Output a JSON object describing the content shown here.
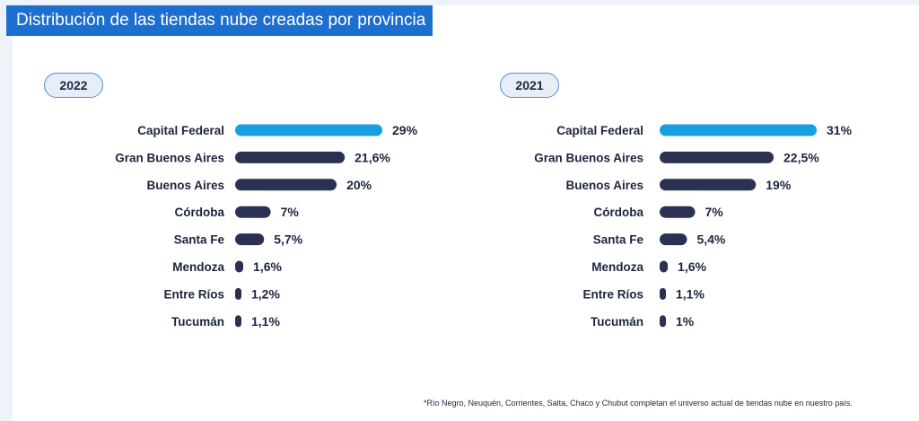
{
  "title": "Distribución de las tiendas nube creadas por provincia",
  "footnote": "*Río Negro, Neuquén, Corrientes, Salta, Chaco y Chubut completan el universo actual de tiendas nube en nuestro país.",
  "colors": {
    "highlight": "#189fe0",
    "bar": "#2b3153",
    "banner": "#1d6fcf",
    "text": "#1d2540"
  },
  "chart_data": [
    {
      "type": "bar",
      "title": "2022",
      "orientation": "horizontal",
      "categories": [
        "Capital Federal",
        "Gran Buenos Aires",
        "Buenos Aires",
        "Córdoba",
        "Santa Fe",
        "Mendoza",
        "Entre Ríos",
        "Tucumán"
      ],
      "values": [
        29,
        21.6,
        20,
        7,
        5.7,
        1.6,
        1.2,
        1.1
      ],
      "labels": [
        "29%",
        "21,6%",
        "20%",
        "7%",
        "5,7%",
        "1,6%",
        "1,2%",
        "1,1%"
      ],
      "highlight_index": 0,
      "xlim": [
        0,
        29
      ]
    },
    {
      "type": "bar",
      "title": "2021",
      "orientation": "horizontal",
      "categories": [
        "Capital Federal",
        "Gran Buenos Aires",
        "Buenos Aires",
        "Córdoba",
        "Santa Fe",
        "Mendoza",
        "Entre Ríos",
        "Tucumán"
      ],
      "values": [
        31,
        22.5,
        19,
        7,
        5.4,
        1.6,
        1.1,
        1
      ],
      "labels": [
        "31%",
        "22,5%",
        "19%",
        "7%",
        "5,4%",
        "1,6%",
        "1,1%",
        "1%"
      ],
      "highlight_index": 0,
      "xlim": [
        0,
        31
      ]
    }
  ]
}
